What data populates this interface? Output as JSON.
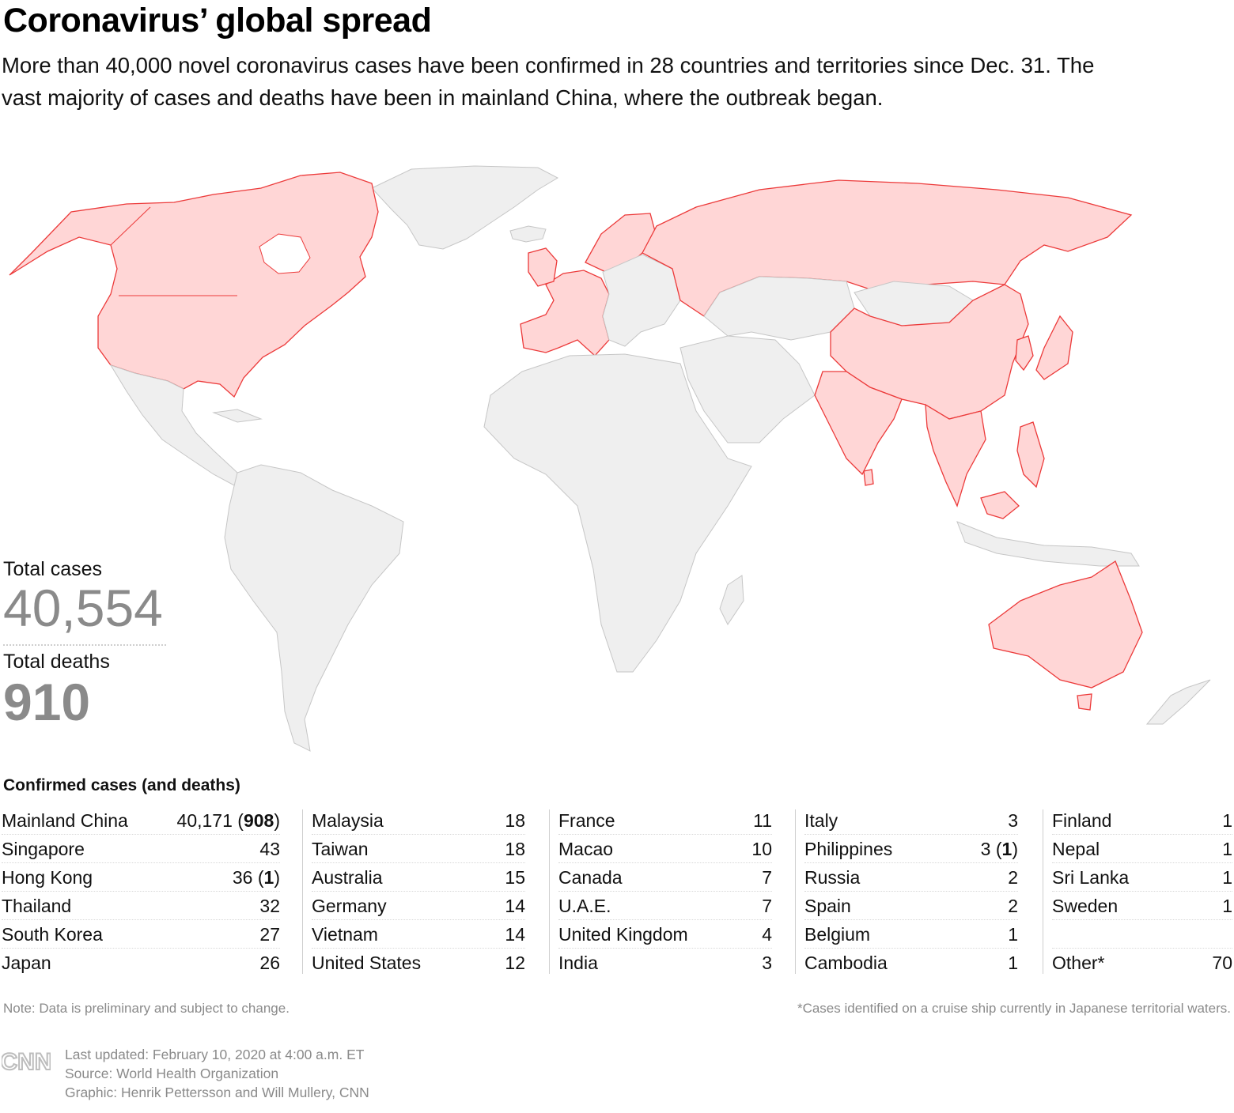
{
  "header": {
    "title": "Coronavirus’ global spread",
    "subtitle": "More than 40,000 novel coronavirus cases have been confirmed in 28 countries and territories since Dec. 31. The vast majority of cases and deaths have been in mainland China, where the outbreak began."
  },
  "map": {
    "affected_fill": "#ffd6d6",
    "affected_stroke": "#ec3a3a",
    "unaffected_fill": "#efefef",
    "unaffected_stroke": "#c6c6c6"
  },
  "stats": {
    "cases_label": "Total cases",
    "cases_value": "40,554",
    "deaths_label": "Total deaths",
    "deaths_value": "910"
  },
  "table": {
    "heading": "Confirmed cases (and deaths)",
    "columns": [
      [
        {
          "name": "Mainland China",
          "cases": "40,171",
          "deaths": "908"
        },
        {
          "name": "Singapore",
          "cases": "43"
        },
        {
          "name": "Hong Kong",
          "cases": "36",
          "deaths": "1"
        },
        {
          "name": "Thailand",
          "cases": "32"
        },
        {
          "name": "South Korea",
          "cases": "27"
        },
        {
          "name": "Japan",
          "cases": "26"
        }
      ],
      [
        {
          "name": "Malaysia",
          "cases": "18"
        },
        {
          "name": "Taiwan",
          "cases": "18"
        },
        {
          "name": "Australia",
          "cases": "15"
        },
        {
          "name": "Germany",
          "cases": "14"
        },
        {
          "name": "Vietnam",
          "cases": "14"
        },
        {
          "name": "United States",
          "cases": "12"
        }
      ],
      [
        {
          "name": "France",
          "cases": "11"
        },
        {
          "name": "Macao",
          "cases": "10"
        },
        {
          "name": "Canada",
          "cases": "7"
        },
        {
          "name": "U.A.E.",
          "cases": "7"
        },
        {
          "name": "United Kingdom",
          "cases": "4"
        },
        {
          "name": "India",
          "cases": "3"
        }
      ],
      [
        {
          "name": "Italy",
          "cases": "3"
        },
        {
          "name": "Philippines",
          "cases": "3",
          "deaths": "1"
        },
        {
          "name": "Russia",
          "cases": "2"
        },
        {
          "name": "Spain",
          "cases": "2"
        },
        {
          "name": "Belgium",
          "cases": "1"
        },
        {
          "name": "Cambodia",
          "cases": "1"
        }
      ],
      [
        {
          "name": "Finland",
          "cases": "1"
        },
        {
          "name": "Nepal",
          "cases": "1"
        },
        {
          "name": "Sri Lanka",
          "cases": "1"
        },
        {
          "name": "Sweden",
          "cases": "1"
        },
        {
          "name": "",
          "cases": ""
        },
        {
          "name": "Other*",
          "cases": "70"
        }
      ]
    ]
  },
  "footer": {
    "note_left": "Note: Data is preliminary and subject to change.",
    "note_right": "*Cases identified on a cruise ship currently in Japanese territorial waters.",
    "logo_text": "CNN",
    "updated": "Last updated: February 10, 2020 at 4:00 a.m. ET",
    "source": "Source: World Health Organization",
    "graphic": "Graphic: Henrik Pettersson and Will Mullery, CNN"
  }
}
